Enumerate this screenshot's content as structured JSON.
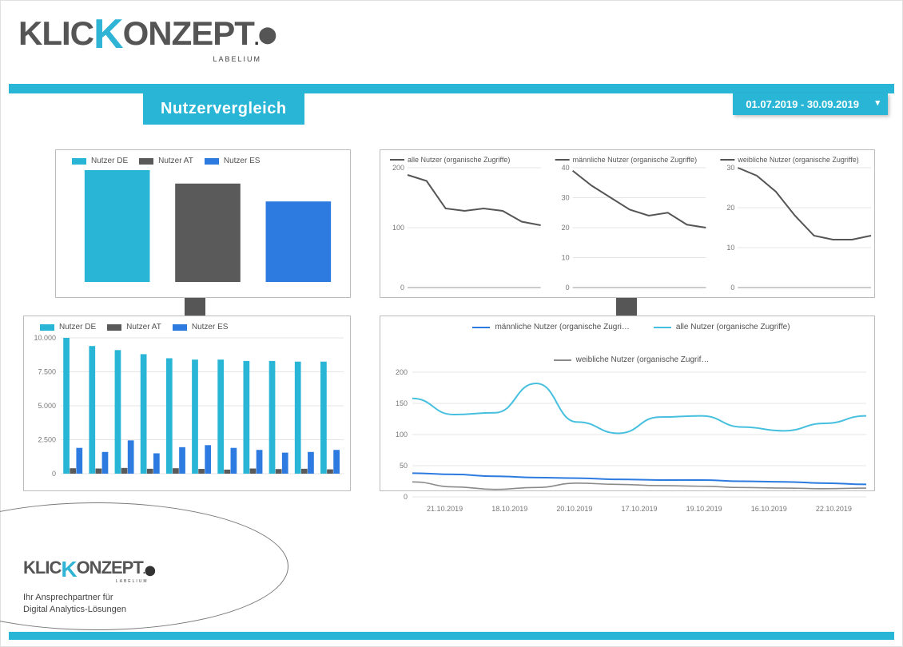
{
  "brand": {
    "name_part1": "KLIC",
    "name_k": "K",
    "name_part2": "ONZEPT",
    "subline": "LABELIUM"
  },
  "page": {
    "title": "Nutzervergleich",
    "date_range": "01.07.2019 - 30.09.2019"
  },
  "colors": {
    "accent": "#29b5d6",
    "de": "#29b5d6",
    "at": "#5a5a5a",
    "es": "#2d7be0",
    "line_all": "#46c0de",
    "line_male": "#2d7be0",
    "line_female": "#8a8a8a",
    "grid": "#e4e4e4",
    "axis_text": "#777777",
    "panel_border": "#bdbdbd",
    "background": "#ffffff"
  },
  "panel_a": {
    "type": "bar",
    "legend": [
      {
        "label": "Nutzer DE",
        "color_key": "de"
      },
      {
        "label": "Nutzer AT",
        "color_key": "at"
      },
      {
        "label": "Nutzer ES",
        "color_key": "es"
      }
    ],
    "values": {
      "de": 100,
      "at": 88,
      "es": 72
    },
    "ylim": [
      0,
      100
    ]
  },
  "panel_b": {
    "type": "line-triple",
    "charts": [
      {
        "title": "alle Nutzer (organische Zugriffe)",
        "ylim": [
          0,
          200
        ],
        "ytick_step": 100,
        "values": [
          188,
          178,
          132,
          128,
          132,
          128,
          110,
          104
        ]
      },
      {
        "title": "männliche Nutzer (organische Zugriffe)",
        "ylim": [
          0,
          40
        ],
        "ytick_step": 10,
        "values": [
          39,
          34,
          30,
          26,
          24,
          25,
          21,
          20
        ]
      },
      {
        "title": "weibliche Nutzer (organische Zugriffe)",
        "ylim": [
          0,
          30
        ],
        "ytick_step": 10,
        "values": [
          30,
          28,
          24,
          18,
          13,
          12,
          12,
          13
        ]
      }
    ],
    "line_color": "#555555"
  },
  "panel_c": {
    "type": "grouped-bar",
    "legend": [
      {
        "label": "Nutzer DE",
        "color_key": "de"
      },
      {
        "label": "Nutzer AT",
        "color_key": "at"
      },
      {
        "label": "Nutzer ES",
        "color_key": "es"
      }
    ],
    "ylim": [
      0,
      10000
    ],
    "ytick_step": 2500,
    "ytick_labels": [
      "0",
      "2.500",
      "5.000",
      "7.500",
      "10.000"
    ],
    "groups": [
      {
        "de": 10000,
        "at": 400,
        "es": 1900
      },
      {
        "de": 9400,
        "at": 380,
        "es": 1600
      },
      {
        "de": 9100,
        "at": 420,
        "es": 2450
      },
      {
        "de": 8800,
        "at": 360,
        "es": 1500
      },
      {
        "de": 8500,
        "at": 400,
        "es": 1950
      },
      {
        "de": 8400,
        "at": 350,
        "es": 2100
      },
      {
        "de": 8400,
        "at": 300,
        "es": 1900
      },
      {
        "de": 8300,
        "at": 380,
        "es": 1750
      },
      {
        "de": 8300,
        "at": 340,
        "es": 1550
      },
      {
        "de": 8250,
        "at": 360,
        "es": 1600
      },
      {
        "de": 8250,
        "at": 320,
        "es": 1750
      }
    ]
  },
  "panel_d": {
    "type": "multi-line",
    "legend": [
      {
        "label": "männliche Nutzer (organische Zugri…",
        "color_key": "line_male"
      },
      {
        "label": "alle Nutzer (organische Zugriffe)",
        "color_key": "line_all"
      },
      {
        "label": "weibliche Nutzer (organische Zugrif…",
        "color_key": "line_female"
      }
    ],
    "ylim": [
      0,
      200
    ],
    "ytick_step": 50,
    "x_labels": [
      "21.10.2019",
      "18.10.2019",
      "20.10.2019",
      "17.10.2019",
      "19.10.2019",
      "16.10.2019",
      "22.10.2019"
    ],
    "series": {
      "all": [
        158,
        132,
        135,
        182,
        120,
        102,
        128,
        130,
        112,
        106,
        118,
        130
      ],
      "male": [
        38,
        36,
        33,
        31,
        30,
        28,
        27,
        27,
        25,
        24,
        22,
        20
      ],
      "female": [
        24,
        16,
        12,
        15,
        22,
        20,
        18,
        17,
        15,
        14,
        13,
        14
      ]
    }
  },
  "footer": {
    "line1": "Ihr Ansprechpartner für",
    "line2": "Digital Analytics-Lösungen"
  }
}
